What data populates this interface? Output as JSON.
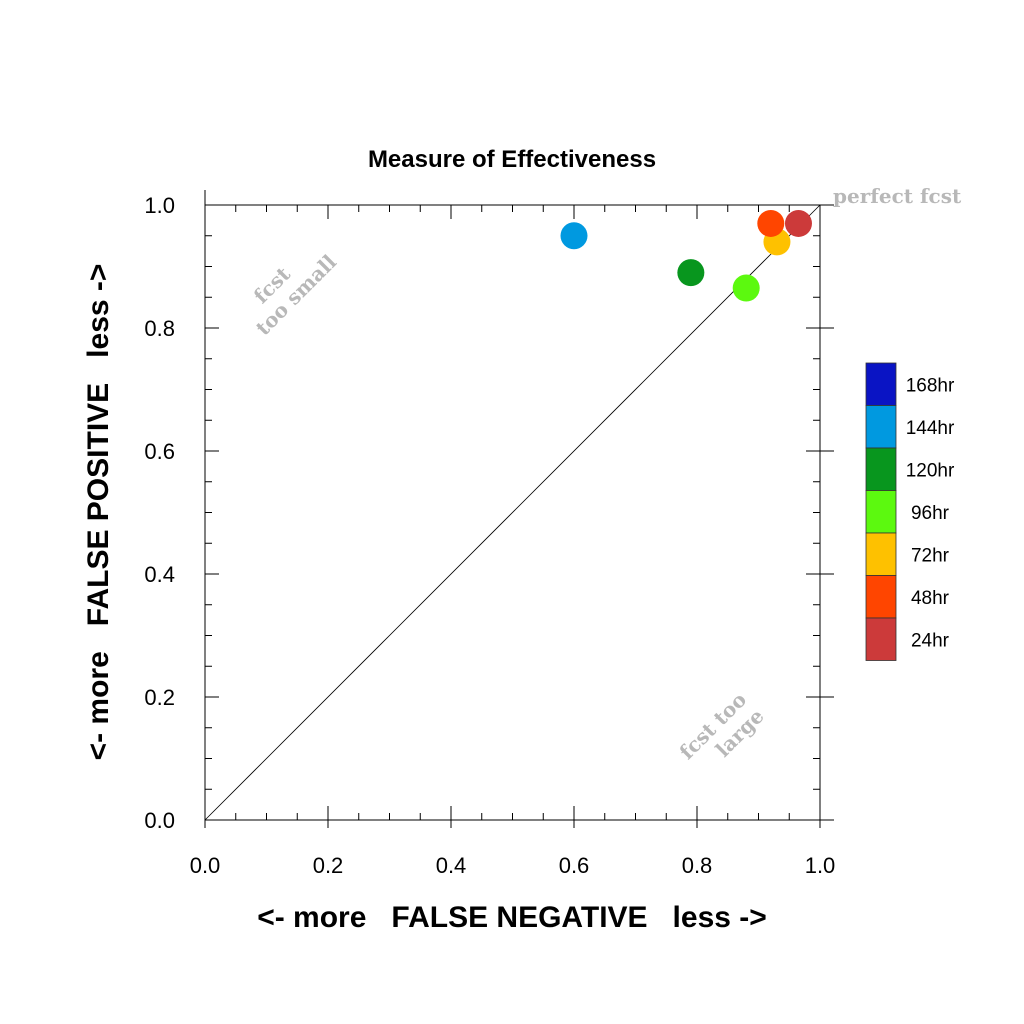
{
  "chart_data": {
    "type": "scatter",
    "title": "Measure of Effectiveness",
    "xlabel": "<- more   FALSE NEGATIVE   less ->",
    "ylabel": "<- more   FALSE POSITIVE   less ->",
    "xlim": [
      0.0,
      1.0
    ],
    "ylim": [
      0.0,
      1.0
    ],
    "x_ticks": [
      "0.0",
      "0.2",
      "0.4",
      "0.6",
      "0.8",
      "1.0"
    ],
    "y_ticks": [
      "0.0",
      "0.2",
      "0.4",
      "0.6",
      "0.8",
      "1.0"
    ],
    "grid": false,
    "diagonal_reference_line": true,
    "annotations": {
      "perfect": "perfect fcst",
      "too_small_1": "fcst",
      "too_small_2": "too small",
      "too_large_1": "fcst too",
      "too_large_2": "large"
    },
    "legend_position": "right",
    "legend": [
      {
        "name": "168hr",
        "color": "#0a14c4"
      },
      {
        "name": "144hr",
        "color": "#0099e0"
      },
      {
        "name": "120hr",
        "color": "#08961e"
      },
      {
        "name": "96hr",
        "color": "#5cf90f"
      },
      {
        "name": "72hr",
        "color": "#fec100"
      },
      {
        "name": "48hr",
        "color": "#ff4500"
      },
      {
        "name": "24hr",
        "color": "#cc3a3a"
      }
    ],
    "series": [
      {
        "name": "144hr",
        "x": 0.6,
        "y": 0.95,
        "color": "#0099e0"
      },
      {
        "name": "120hr",
        "x": 0.79,
        "y": 0.89,
        "color": "#08961e"
      },
      {
        "name": "96hr",
        "x": 0.88,
        "y": 0.865,
        "color": "#5cf90f"
      },
      {
        "name": "72hr",
        "x": 0.93,
        "y": 0.94,
        "color": "#fec100"
      },
      {
        "name": "48hr",
        "x": 0.92,
        "y": 0.97,
        "color": "#ff4500"
      },
      {
        "name": "24hr",
        "x": 0.965,
        "y": 0.97,
        "color": "#cc3a3a"
      }
    ]
  }
}
